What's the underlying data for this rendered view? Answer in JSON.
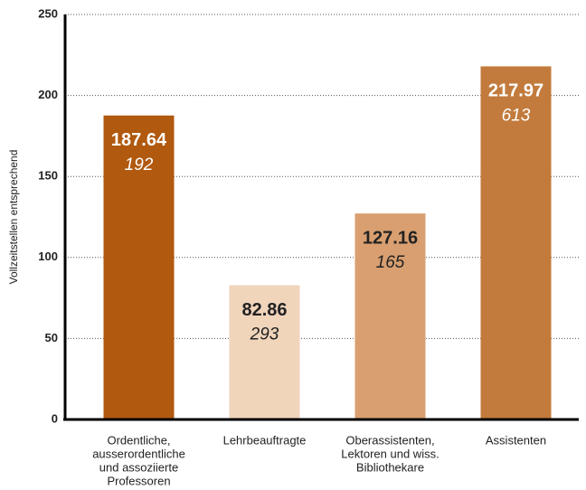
{
  "chart_data": {
    "type": "bar",
    "y_label": "Vollzeitstellen entsprechend",
    "categories": [
      [
        "Ordentliche,",
        "ausserordentliche",
        "und assoziierte",
        "Professoren"
      ],
      [
        "Lehrbeauftragte"
      ],
      [
        "Oberassistenten,",
        "Lektoren und wiss.",
        "Bibliothekare"
      ],
      [
        "Assistenten"
      ]
    ],
    "values": [
      187.64,
      82.86,
      127.16,
      217.97
    ],
    "secondary_values": [
      192,
      293,
      165,
      613
    ],
    "colors": [
      "#b0590f",
      "#f0d5bb",
      "#d99f70",
      "#c27b3c"
    ],
    "ylim": [
      0,
      250
    ],
    "yticks": [
      0,
      50,
      100,
      150,
      200,
      250
    ],
    "grid": true
  }
}
